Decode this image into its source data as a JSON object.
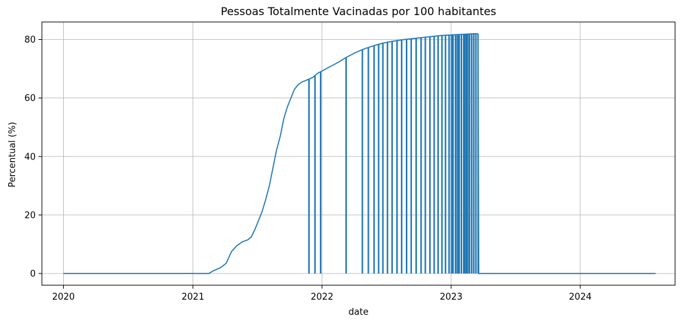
{
  "chart_data": {
    "type": "line",
    "title": "Pessoas Totalmente Vacinadas por 100 habitantes",
    "xlabel": "date",
    "ylabel": "Percentual (%)",
    "x_ticks": [
      "2020",
      "2021",
      "2022",
      "2023",
      "2024"
    ],
    "y_ticks": [
      0,
      20,
      40,
      60,
      80
    ],
    "xlim": [
      "2019-11-01",
      "2024-09-25"
    ],
    "ylim": [
      -4,
      86
    ],
    "grid": true,
    "series": [
      {
        "color": "#1f77b4",
        "points": [
          [
            "2020-01-01",
            0
          ],
          [
            "2021-02-15",
            0
          ],
          [
            "2021-03-01",
            1.0
          ],
          [
            "2021-03-20",
            2.0
          ],
          [
            "2021-04-05",
            3.5
          ],
          [
            "2021-04-20",
            7.5
          ],
          [
            "2021-05-05",
            9.5
          ],
          [
            "2021-05-20",
            10.8
          ],
          [
            "2021-06-05",
            11.5
          ],
          [
            "2021-06-15",
            12.5
          ],
          [
            "2021-06-25",
            15
          ],
          [
            "2021-07-05",
            18
          ],
          [
            "2021-07-15",
            21
          ],
          [
            "2021-07-25",
            25
          ],
          [
            "2021-08-05",
            30
          ],
          [
            "2021-08-15",
            36
          ],
          [
            "2021-08-25",
            42
          ],
          [
            "2021-09-05",
            47
          ],
          [
            "2021-09-15",
            53
          ],
          [
            "2021-09-25",
            57
          ],
          [
            "2021-10-05",
            60
          ],
          [
            "2021-10-15",
            63
          ],
          [
            "2021-10-25",
            64.5
          ],
          [
            "2021-11-05",
            65.5
          ],
          [
            "2021-11-20",
            66.2
          ],
          [
            "2021-12-05",
            67
          ],
          [
            "2021-12-20",
            68.5
          ],
          [
            "2022-01-05",
            69.5
          ],
          [
            "2022-01-20",
            70.5
          ],
          [
            "2022-02-05",
            71.5
          ],
          [
            "2022-02-20",
            72.5
          ],
          [
            "2022-03-05",
            73.5
          ],
          [
            "2022-03-20",
            74.5
          ],
          [
            "2022-04-05",
            75.5
          ],
          [
            "2022-04-20",
            76.3
          ],
          [
            "2022-05-05",
            77
          ],
          [
            "2022-05-20",
            77.6
          ],
          [
            "2022-06-05",
            78.2
          ],
          [
            "2022-06-20",
            78.7
          ],
          [
            "2022-07-05",
            79.1
          ],
          [
            "2022-07-20",
            79.4
          ],
          [
            "2022-08-05",
            79.7
          ],
          [
            "2022-08-20",
            80.0
          ],
          [
            "2022-09-05",
            80.2
          ],
          [
            "2022-09-20",
            80.4
          ],
          [
            "2022-10-05",
            80.6
          ],
          [
            "2022-10-20",
            80.8
          ],
          [
            "2022-11-05",
            81.0
          ],
          [
            "2022-11-20",
            81.2
          ],
          [
            "2022-12-05",
            81.4
          ],
          [
            "2022-12-20",
            81.5
          ],
          [
            "2023-01-05",
            81.6
          ],
          [
            "2023-01-20",
            81.7
          ],
          [
            "2023-02-05",
            81.8
          ],
          [
            "2023-02-20",
            81.9
          ],
          [
            "2023-03-05",
            82.0
          ],
          [
            "2023-03-18",
            82.0
          ]
        ],
        "zero_gaps": [
          "2021-11-25",
          "2021-12-12",
          "2021-12-28",
          "2022-03-10",
          "2022-04-25",
          "2022-05-12",
          "2022-05-28",
          "2022-06-10",
          "2022-06-22",
          "2022-07-05",
          "2022-07-18",
          "2022-08-01",
          "2022-08-14",
          "2022-08-28",
          "2022-09-10",
          "2022-09-24",
          "2022-10-08",
          "2022-10-20",
          "2022-11-02",
          "2022-11-14",
          "2022-11-25",
          "2022-12-06",
          "2022-12-16",
          "2022-12-26",
          "2023-01-05",
          "2023-01-14",
          "2023-01-22",
          "2023-01-30",
          "2023-02-07",
          "2023-02-14",
          "2023-02-21",
          "2023-02-28",
          "2023-03-06",
          "2023-03-12"
        ],
        "tail": [
          [
            "2023-03-20",
            0
          ],
          [
            "2024-08-01",
            0
          ]
        ]
      }
    ]
  }
}
